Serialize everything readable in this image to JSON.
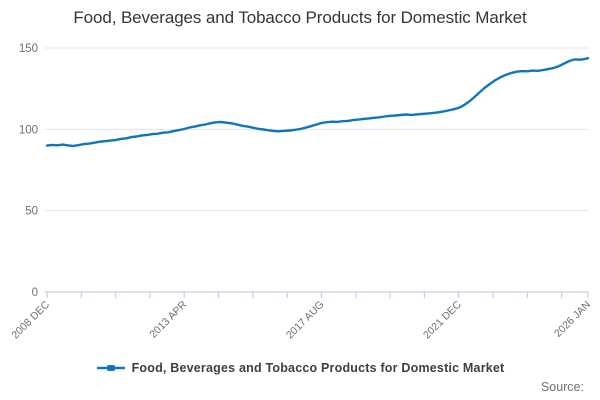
{
  "title": "Food, Beverages and Tobacco Products for Domestic Market",
  "legend": {
    "label": "Food, Beverages and Tobacco Products for Domestic Market"
  },
  "source": {
    "label": "Source:"
  },
  "colors": {
    "series": "#1076bc",
    "grid": "#e3e3e3",
    "axis": "#c3cfe0",
    "tick_text": "#6f6f6f",
    "title_text": "#363636",
    "legend_text": "#3f3f3f",
    "background": "#ffffff"
  },
  "chart_data": {
    "type": "line",
    "title": "Food, Beverages and Tobacco Products for Domestic Market",
    "xlabel": "",
    "ylabel": "",
    "ylim": [
      0,
      150
    ],
    "y_ticks": [
      0,
      50,
      100,
      150
    ],
    "grid": "horizontal gridlines only",
    "legend_position": "bottom center",
    "x_axis_note": "monthly index, months counted from 2008 DEC = 0",
    "x_tick_months": [
      0,
      13,
      26,
      39,
      52,
      65,
      78,
      91,
      104,
      117,
      130,
      143,
      156,
      169,
      182,
      195,
      205
    ],
    "x_tick_labels": {
      "0": "2008 DEC",
      "52": "2013 APR",
      "104": "2017 AUG",
      "156": "2021 DEC",
      "205": "2026 JAN"
    },
    "series": [
      {
        "name": "Food, Beverages and Tobacco Products for Domestic Market",
        "points": [
          [
            0,
            90.0
          ],
          [
            2,
            90.4
          ],
          [
            4,
            90.2
          ],
          [
            6,
            90.6
          ],
          [
            8,
            90.1
          ],
          [
            10,
            89.8
          ],
          [
            12,
            90.3
          ],
          [
            14,
            90.9
          ],
          [
            16,
            91.2
          ],
          [
            18,
            91.8
          ],
          [
            20,
            92.4
          ],
          [
            22,
            92.7
          ],
          [
            24,
            93.1
          ],
          [
            26,
            93.4
          ],
          [
            28,
            94.1
          ],
          [
            30,
            94.5
          ],
          [
            32,
            95.2
          ],
          [
            34,
            95.6
          ],
          [
            36,
            96.3
          ],
          [
            38,
            96.6
          ],
          [
            40,
            97.1
          ],
          [
            42,
            97.3
          ],
          [
            44,
            97.9
          ],
          [
            46,
            98.2
          ],
          [
            48,
            98.9
          ],
          [
            50,
            99.5
          ],
          [
            52,
            100.2
          ],
          [
            54,
            101.1
          ],
          [
            56,
            101.7
          ],
          [
            58,
            102.5
          ],
          [
            60,
            103.0
          ],
          [
            62,
            103.8
          ],
          [
            64,
            104.3
          ],
          [
            66,
            104.5
          ],
          [
            68,
            104.1
          ],
          [
            70,
            103.7
          ],
          [
            72,
            103.0
          ],
          [
            74,
            102.2
          ],
          [
            76,
            101.7
          ],
          [
            78,
            101.0
          ],
          [
            80,
            100.3
          ],
          [
            82,
            99.9
          ],
          [
            84,
            99.4
          ],
          [
            86,
            99.0
          ],
          [
            88,
            98.8
          ],
          [
            90,
            99.1
          ],
          [
            92,
            99.3
          ],
          [
            94,
            99.7
          ],
          [
            96,
            100.2
          ],
          [
            98,
            101.0
          ],
          [
            100,
            101.9
          ],
          [
            102,
            102.9
          ],
          [
            104,
            103.9
          ],
          [
            106,
            104.4
          ],
          [
            108,
            104.7
          ],
          [
            110,
            104.6
          ],
          [
            112,
            105.0
          ],
          [
            114,
            105.2
          ],
          [
            116,
            105.7
          ],
          [
            118,
            106.0
          ],
          [
            120,
            106.4
          ],
          [
            122,
            106.7
          ],
          [
            124,
            107.1
          ],
          [
            126,
            107.4
          ],
          [
            128,
            107.9
          ],
          [
            130,
            108.3
          ],
          [
            132,
            108.5
          ],
          [
            134,
            108.8
          ],
          [
            136,
            109.1
          ],
          [
            138,
            108.9
          ],
          [
            140,
            109.2
          ],
          [
            142,
            109.4
          ],
          [
            144,
            109.7
          ],
          [
            146,
            110.0
          ],
          [
            148,
            110.4
          ],
          [
            150,
            110.9
          ],
          [
            152,
            111.6
          ],
          [
            154,
            112.3
          ],
          [
            156,
            113.2
          ],
          [
            158,
            114.9
          ],
          [
            160,
            117.1
          ],
          [
            162,
            119.9
          ],
          [
            164,
            122.9
          ],
          [
            166,
            125.7
          ],
          [
            168,
            128.1
          ],
          [
            170,
            130.3
          ],
          [
            172,
            132.1
          ],
          [
            174,
            133.6
          ],
          [
            176,
            134.7
          ],
          [
            178,
            135.4
          ],
          [
            180,
            135.8
          ],
          [
            182,
            135.7
          ],
          [
            184,
            136.1
          ],
          [
            186,
            136.0
          ],
          [
            188,
            136.5
          ],
          [
            190,
            137.0
          ],
          [
            192,
            137.7
          ],
          [
            194,
            138.9
          ],
          [
            196,
            140.5
          ],
          [
            198,
            142.1
          ],
          [
            200,
            143.0
          ],
          [
            202,
            142.8
          ],
          [
            204,
            143.3
          ],
          [
            205,
            143.7
          ]
        ]
      }
    ]
  }
}
